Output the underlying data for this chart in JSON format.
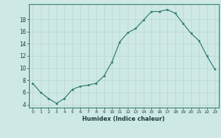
{
  "x": [
    0,
    1,
    2,
    3,
    4,
    5,
    6,
    7,
    8,
    9,
    10,
    11,
    12,
    13,
    14,
    15,
    16,
    17,
    18,
    19,
    20,
    21,
    22,
    23
  ],
  "y": [
    7.5,
    6.0,
    5.0,
    4.2,
    5.0,
    6.5,
    7.0,
    7.2,
    7.5,
    8.7,
    11.0,
    14.3,
    15.8,
    16.5,
    17.9,
    19.3,
    19.3,
    19.6,
    19.0,
    17.3,
    15.7,
    14.5,
    12.0,
    9.8
  ],
  "xlabel": "Humidex (Indice chaleur)",
  "ylim": [
    3.5,
    20.5
  ],
  "xlim": [
    -0.5,
    23.5
  ],
  "yticks": [
    4,
    6,
    8,
    10,
    12,
    14,
    16,
    18
  ],
  "xticks": [
    0,
    1,
    2,
    3,
    4,
    5,
    6,
    7,
    8,
    9,
    10,
    11,
    12,
    13,
    14,
    15,
    16,
    17,
    18,
    19,
    20,
    21,
    22,
    23
  ],
  "line_color": "#2e7d6e",
  "marker_color": "#2e7d6e",
  "bg_color": "#cde8e5",
  "grid_color": "#b8d4d0",
  "axes_color": "#2e7d6e"
}
